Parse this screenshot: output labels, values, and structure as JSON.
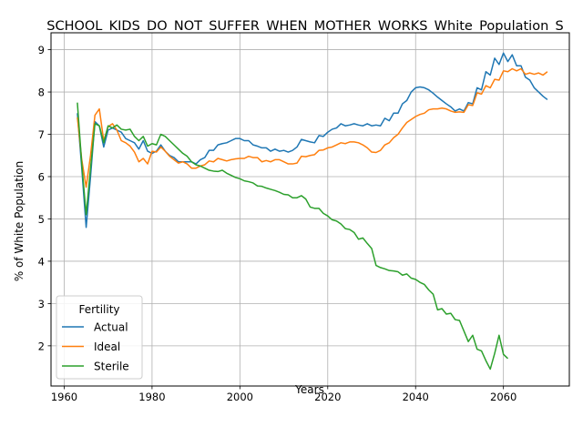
{
  "chart_data": {
    "type": "line",
    "title": "SCHOOL_KIDS_DO_NOT_SUFFER_WHEN_MOTHER_WORKS_White_Population_S",
    "xlabel": "Years",
    "ylabel": "% of White Population",
    "xlim": [
      1957,
      2075
    ],
    "ylim": [
      1.05,
      9.4
    ],
    "xticks": [
      1960,
      1980,
      2000,
      2020,
      2040,
      2060
    ],
    "yticks": [
      2,
      3,
      4,
      5,
      6,
      7,
      8,
      9
    ],
    "grid": true,
    "legend": {
      "title": "Fertility",
      "placement": "lower-left"
    },
    "series": [
      {
        "name": "Actual",
        "color": "#1f77b4",
        "points": [
          [
            1963,
            7.5
          ],
          [
            1964,
            6.2
          ],
          [
            1965,
            4.8
          ],
          [
            1966,
            6.0
          ],
          [
            1967,
            7.3
          ],
          [
            1968,
            7.2
          ],
          [
            1969,
            6.7
          ],
          [
            1970,
            7.1
          ],
          [
            1971,
            7.15
          ],
          [
            1972,
            7.1
          ],
          [
            1973,
            7.05
          ],
          [
            1974,
            6.9
          ],
          [
            1975,
            6.85
          ],
          [
            1976,
            6.8
          ],
          [
            1977,
            6.65
          ],
          [
            1978,
            6.85
          ],
          [
            1979,
            6.6
          ],
          [
            1980,
            6.55
          ],
          [
            1981,
            6.6
          ],
          [
            1982,
            6.75
          ],
          [
            1983,
            6.6
          ],
          [
            1984,
            6.5
          ],
          [
            1985,
            6.45
          ],
          [
            1986,
            6.35
          ],
          [
            1987,
            6.35
          ],
          [
            1988,
            6.35
          ],
          [
            1989,
            6.35
          ],
          [
            1990,
            6.3
          ],
          [
            1991,
            6.4
          ],
          [
            1992,
            6.45
          ],
          [
            1993,
            6.62
          ],
          [
            1994,
            6.62
          ],
          [
            1995,
            6.75
          ],
          [
            1996,
            6.78
          ],
          [
            1997,
            6.8
          ],
          [
            1998,
            6.85
          ],
          [
            1999,
            6.9
          ],
          [
            2000,
            6.9
          ],
          [
            2001,
            6.85
          ],
          [
            2002,
            6.85
          ],
          [
            2003,
            6.75
          ],
          [
            2004,
            6.72
          ],
          [
            2005,
            6.68
          ],
          [
            2006,
            6.68
          ],
          [
            2007,
            6.6
          ],
          [
            2008,
            6.65
          ],
          [
            2009,
            6.6
          ],
          [
            2010,
            6.62
          ],
          [
            2011,
            6.58
          ],
          [
            2012,
            6.62
          ],
          [
            2013,
            6.7
          ],
          [
            2014,
            6.88
          ],
          [
            2015,
            6.85
          ],
          [
            2016,
            6.82
          ],
          [
            2017,
            6.8
          ],
          [
            2018,
            6.97
          ],
          [
            2019,
            6.95
          ],
          [
            2020,
            7.05
          ],
          [
            2021,
            7.12
          ],
          [
            2022,
            7.15
          ],
          [
            2023,
            7.25
          ],
          [
            2024,
            7.2
          ],
          [
            2025,
            7.22
          ],
          [
            2026,
            7.25
          ],
          [
            2027,
            7.22
          ],
          [
            2028,
            7.2
          ],
          [
            2029,
            7.25
          ],
          [
            2030,
            7.2
          ],
          [
            2031,
            7.22
          ],
          [
            2032,
            7.2
          ],
          [
            2033,
            7.38
          ],
          [
            2034,
            7.32
          ],
          [
            2035,
            7.5
          ],
          [
            2036,
            7.5
          ],
          [
            2037,
            7.72
          ],
          [
            2038,
            7.8
          ],
          [
            2039,
            8.0
          ],
          [
            2040,
            8.1
          ],
          [
            2041,
            8.12
          ],
          [
            2042,
            8.1
          ],
          [
            2043,
            8.05
          ],
          [
            2044,
            7.97
          ],
          [
            2045,
            7.88
          ],
          [
            2046,
            7.8
          ],
          [
            2047,
            7.72
          ],
          [
            2048,
            7.65
          ],
          [
            2049,
            7.55
          ],
          [
            2050,
            7.6
          ],
          [
            2051,
            7.55
          ],
          [
            2052,
            7.75
          ],
          [
            2053,
            7.72
          ],
          [
            2054,
            8.1
          ],
          [
            2055,
            8.05
          ],
          [
            2056,
            8.48
          ],
          [
            2057,
            8.4
          ],
          [
            2058,
            8.8
          ],
          [
            2059,
            8.65
          ],
          [
            2060,
            8.92
          ],
          [
            2061,
            8.72
          ],
          [
            2062,
            8.88
          ],
          [
            2063,
            8.62
          ],
          [
            2064,
            8.62
          ],
          [
            2065,
            8.35
          ],
          [
            2066,
            8.28
          ],
          [
            2067,
            8.1
          ],
          [
            2068,
            8.0
          ],
          [
            2069,
            7.9
          ],
          [
            2070,
            7.82
          ]
        ]
      },
      {
        "name": "Ideal",
        "color": "#ff7f0e",
        "points": [
          [
            1963,
            7.4
          ],
          [
            1964,
            6.4
          ],
          [
            1965,
            5.75
          ],
          [
            1966,
            6.5
          ],
          [
            1967,
            7.45
          ],
          [
            1968,
            7.6
          ],
          [
            1969,
            6.85
          ],
          [
            1970,
            7.18
          ],
          [
            1971,
            7.25
          ],
          [
            1972,
            7.1
          ],
          [
            1973,
            6.85
          ],
          [
            1974,
            6.8
          ],
          [
            1975,
            6.72
          ],
          [
            1976,
            6.58
          ],
          [
            1977,
            6.35
          ],
          [
            1978,
            6.43
          ],
          [
            1979,
            6.3
          ],
          [
            1980,
            6.6
          ],
          [
            1981,
            6.58
          ],
          [
            1982,
            6.7
          ],
          [
            1983,
            6.6
          ],
          [
            1984,
            6.48
          ],
          [
            1985,
            6.4
          ],
          [
            1986,
            6.32
          ],
          [
            1987,
            6.35
          ],
          [
            1988,
            6.3
          ],
          [
            1989,
            6.2
          ],
          [
            1990,
            6.2
          ],
          [
            1991,
            6.25
          ],
          [
            1992,
            6.28
          ],
          [
            1993,
            6.37
          ],
          [
            1994,
            6.35
          ],
          [
            1995,
            6.43
          ],
          [
            1996,
            6.4
          ],
          [
            1997,
            6.37
          ],
          [
            1998,
            6.4
          ],
          [
            1999,
            6.42
          ],
          [
            2000,
            6.43
          ],
          [
            2001,
            6.43
          ],
          [
            2002,
            6.48
          ],
          [
            2003,
            6.45
          ],
          [
            2004,
            6.45
          ],
          [
            2005,
            6.35
          ],
          [
            2006,
            6.38
          ],
          [
            2007,
            6.35
          ],
          [
            2008,
            6.4
          ],
          [
            2009,
            6.4
          ],
          [
            2010,
            6.35
          ],
          [
            2011,
            6.3
          ],
          [
            2012,
            6.3
          ],
          [
            2013,
            6.32
          ],
          [
            2014,
            6.48
          ],
          [
            2015,
            6.47
          ],
          [
            2016,
            6.5
          ],
          [
            2017,
            6.52
          ],
          [
            2018,
            6.62
          ],
          [
            2019,
            6.63
          ],
          [
            2020,
            6.68
          ],
          [
            2021,
            6.7
          ],
          [
            2022,
            6.75
          ],
          [
            2023,
            6.8
          ],
          [
            2024,
            6.78
          ],
          [
            2025,
            6.82
          ],
          [
            2026,
            6.82
          ],
          [
            2027,
            6.8
          ],
          [
            2028,
            6.75
          ],
          [
            2029,
            6.68
          ],
          [
            2030,
            6.58
          ],
          [
            2031,
            6.57
          ],
          [
            2032,
            6.62
          ],
          [
            2033,
            6.75
          ],
          [
            2034,
            6.8
          ],
          [
            2035,
            6.92
          ],
          [
            2036,
            7.0
          ],
          [
            2037,
            7.15
          ],
          [
            2038,
            7.28
          ],
          [
            2039,
            7.35
          ],
          [
            2040,
            7.42
          ],
          [
            2041,
            7.47
          ],
          [
            2042,
            7.5
          ],
          [
            2043,
            7.58
          ],
          [
            2044,
            7.6
          ],
          [
            2045,
            7.6
          ],
          [
            2046,
            7.62
          ],
          [
            2047,
            7.6
          ],
          [
            2048,
            7.55
          ],
          [
            2049,
            7.52
          ],
          [
            2050,
            7.53
          ],
          [
            2051,
            7.52
          ],
          [
            2052,
            7.7
          ],
          [
            2053,
            7.68
          ],
          [
            2054,
            7.98
          ],
          [
            2055,
            7.95
          ],
          [
            2056,
            8.15
          ],
          [
            2057,
            8.1
          ],
          [
            2058,
            8.3
          ],
          [
            2059,
            8.28
          ],
          [
            2060,
            8.5
          ],
          [
            2061,
            8.48
          ],
          [
            2062,
            8.55
          ],
          [
            2063,
            8.5
          ],
          [
            2064,
            8.55
          ],
          [
            2065,
            8.42
          ],
          [
            2066,
            8.45
          ],
          [
            2067,
            8.42
          ],
          [
            2068,
            8.45
          ],
          [
            2069,
            8.4
          ],
          [
            2070,
            8.48
          ]
        ]
      },
      {
        "name": "Sterile",
        "color": "#2ca02c",
        "points": [
          [
            1963,
            7.75
          ],
          [
            1964,
            6.3
          ],
          [
            1965,
            5.1
          ],
          [
            1966,
            6.2
          ],
          [
            1967,
            7.25
          ],
          [
            1968,
            7.2
          ],
          [
            1969,
            6.8
          ],
          [
            1970,
            7.2
          ],
          [
            1971,
            7.15
          ],
          [
            1972,
            7.22
          ],
          [
            1973,
            7.12
          ],
          [
            1974,
            7.1
          ],
          [
            1975,
            7.12
          ],
          [
            1976,
            6.95
          ],
          [
            1977,
            6.85
          ],
          [
            1978,
            6.95
          ],
          [
            1979,
            6.72
          ],
          [
            1980,
            6.78
          ],
          [
            1981,
            6.75
          ],
          [
            1982,
            7.0
          ],
          [
            1983,
            6.95
          ],
          [
            1984,
            6.85
          ],
          [
            1985,
            6.75
          ],
          [
            1986,
            6.65
          ],
          [
            1987,
            6.55
          ],
          [
            1988,
            6.48
          ],
          [
            1989,
            6.35
          ],
          [
            1990,
            6.28
          ],
          [
            1991,
            6.25
          ],
          [
            1992,
            6.2
          ],
          [
            1993,
            6.15
          ],
          [
            1994,
            6.13
          ],
          [
            1995,
            6.12
          ],
          [
            1996,
            6.15
          ],
          [
            1997,
            6.08
          ],
          [
            1998,
            6.03
          ],
          [
            1999,
            5.98
          ],
          [
            2000,
            5.95
          ],
          [
            2001,
            5.9
          ],
          [
            2002,
            5.88
          ],
          [
            2003,
            5.85
          ],
          [
            2004,
            5.78
          ],
          [
            2005,
            5.77
          ],
          [
            2006,
            5.73
          ],
          [
            2007,
            5.7
          ],
          [
            2008,
            5.67
          ],
          [
            2009,
            5.63
          ],
          [
            2010,
            5.58
          ],
          [
            2011,
            5.57
          ],
          [
            2012,
            5.5
          ],
          [
            2013,
            5.5
          ],
          [
            2014,
            5.55
          ],
          [
            2015,
            5.47
          ],
          [
            2016,
            5.28
          ],
          [
            2017,
            5.25
          ],
          [
            2018,
            5.25
          ],
          [
            2019,
            5.13
          ],
          [
            2020,
            5.07
          ],
          [
            2021,
            4.98
          ],
          [
            2022,
            4.95
          ],
          [
            2023,
            4.88
          ],
          [
            2024,
            4.77
          ],
          [
            2025,
            4.75
          ],
          [
            2026,
            4.68
          ],
          [
            2027,
            4.52
          ],
          [
            2028,
            4.55
          ],
          [
            2029,
            4.42
          ],
          [
            2030,
            4.3
          ],
          [
            2031,
            3.9
          ],
          [
            2032,
            3.85
          ],
          [
            2033,
            3.82
          ],
          [
            2034,
            3.78
          ],
          [
            2035,
            3.77
          ],
          [
            2036,
            3.75
          ],
          [
            2037,
            3.67
          ],
          [
            2038,
            3.7
          ],
          [
            2039,
            3.6
          ],
          [
            2040,
            3.57
          ],
          [
            2041,
            3.5
          ],
          [
            2042,
            3.45
          ],
          [
            2043,
            3.32
          ],
          [
            2044,
            3.22
          ],
          [
            2045,
            2.85
          ],
          [
            2046,
            2.88
          ],
          [
            2047,
            2.75
          ],
          [
            2048,
            2.77
          ],
          [
            2049,
            2.62
          ],
          [
            2050,
            2.6
          ],
          [
            2051,
            2.35
          ],
          [
            2052,
            2.1
          ],
          [
            2053,
            2.25
          ],
          [
            2054,
            1.92
          ],
          [
            2055,
            1.88
          ],
          [
            2056,
            1.65
          ],
          [
            2057,
            1.45
          ],
          [
            2058,
            1.82
          ],
          [
            2059,
            2.25
          ],
          [
            2060,
            1.8
          ],
          [
            2061,
            1.7
          ]
        ]
      }
    ]
  }
}
